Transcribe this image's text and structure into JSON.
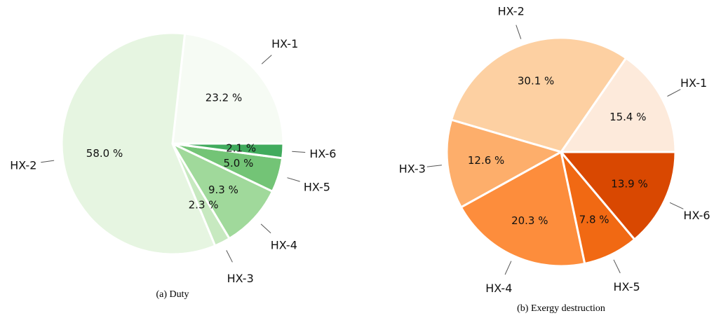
{
  "chart_data": [
    {
      "type": "pie",
      "caption": "(a) Duty",
      "categories": [
        "HX-1",
        "HX-2",
        "HX-3",
        "HX-4",
        "HX-5",
        "HX-6"
      ],
      "values": [
        23.2,
        58.0,
        2.3,
        9.3,
        5.0,
        2.1
      ],
      "value_labels": [
        "23.2 %",
        "58.0 %",
        "2.3 %",
        "9.3 %",
        "5.0 %",
        "2.1 %"
      ],
      "colors": [
        "#f6fbf4",
        "#e6f5e1",
        "#c7e9c0",
        "#a0d99b",
        "#73c476",
        "#41ab5d"
      ],
      "start_angle_deg": 0,
      "direction": "counterclockwise"
    },
    {
      "type": "pie",
      "caption": "(b) Exergy destruction",
      "categories": [
        "HX-1",
        "HX-2",
        "HX-3",
        "HX-4",
        "HX-5",
        "HX-6"
      ],
      "values": [
        15.4,
        30.1,
        12.6,
        20.3,
        7.8,
        13.9
      ],
      "value_labels": [
        "15.4 %",
        "30.1 %",
        "12.6 %",
        "20.3 %",
        "7.8 %",
        "13.9 %"
      ],
      "colors": [
        "#fdeadb",
        "#fdd0a2",
        "#fdae6b",
        "#fd8d3c",
        "#f16913",
        "#d94801"
      ],
      "start_angle_deg": 0,
      "direction": "counterclockwise"
    }
  ]
}
